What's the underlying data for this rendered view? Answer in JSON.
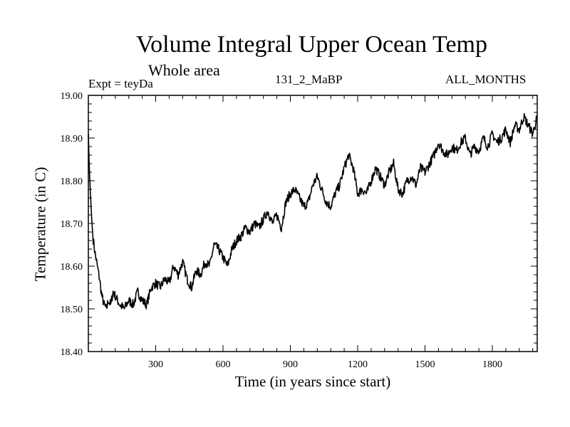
{
  "chart_data": {
    "type": "line",
    "title": "Volume Integral Upper Ocean Temp",
    "subtitle": "Whole area",
    "experiment_label": "Expt = teyDa",
    "run_label": "131_2_MaBP",
    "months_label": "ALL_MONTHS",
    "xlabel": "Time (in years since start)",
    "ylabel": "Temperature (in C)",
    "xlim": [
      0,
      2000
    ],
    "ylim": [
      18.4,
      19.0
    ],
    "xticks": [
      300,
      600,
      900,
      1200,
      1500,
      1800
    ],
    "xtick_labels": [
      "300",
      "600",
      "900",
      "1200",
      "1500",
      "1800"
    ],
    "yticks": [
      18.4,
      18.5,
      18.6,
      18.7,
      18.8,
      18.9,
      19.0
    ],
    "ytick_labels": [
      "18.40",
      "18.50",
      "18.60",
      "18.70",
      "18.80",
      "18.90",
      "19.00"
    ],
    "grid": false,
    "series": [
      {
        "name": "Volume Integral Upper Ocean Temp",
        "x": [
          0,
          5,
          10,
          15,
          20,
          30,
          40,
          50,
          60,
          70,
          80,
          90,
          100,
          110,
          120,
          140,
          160,
          180,
          200,
          220,
          240,
          260,
          280,
          300,
          320,
          340,
          360,
          380,
          400,
          420,
          440,
          460,
          480,
          500,
          520,
          540,
          560,
          580,
          600,
          620,
          640,
          660,
          680,
          700,
          720,
          740,
          760,
          780,
          800,
          820,
          840,
          860,
          880,
          900,
          920,
          940,
          960,
          980,
          1000,
          1020,
          1040,
          1060,
          1080,
          1100,
          1120,
          1140,
          1160,
          1180,
          1200,
          1220,
          1240,
          1260,
          1280,
          1300,
          1320,
          1340,
          1360,
          1380,
          1400,
          1420,
          1440,
          1460,
          1480,
          1500,
          1520,
          1540,
          1560,
          1580,
          1600,
          1620,
          1640,
          1660,
          1680,
          1700,
          1720,
          1740,
          1760,
          1780,
          1800,
          1820,
          1840,
          1860,
          1880,
          1900,
          1920,
          1940,
          1960,
          1980,
          2000
        ],
        "values": [
          18.91,
          18.82,
          18.76,
          18.71,
          18.67,
          18.63,
          18.6,
          18.57,
          18.53,
          18.51,
          18.5,
          18.52,
          18.51,
          18.54,
          18.53,
          18.51,
          18.5,
          18.52,
          18.51,
          18.54,
          18.52,
          18.51,
          18.55,
          18.56,
          18.55,
          18.57,
          18.56,
          18.6,
          18.58,
          18.61,
          18.57,
          18.55,
          18.59,
          18.58,
          18.61,
          18.6,
          18.65,
          18.64,
          18.62,
          18.6,
          18.64,
          18.66,
          18.67,
          18.69,
          18.68,
          18.7,
          18.69,
          18.71,
          18.73,
          18.7,
          18.72,
          18.69,
          18.75,
          18.77,
          18.78,
          18.76,
          18.74,
          18.75,
          18.79,
          18.81,
          18.78,
          18.75,
          18.74,
          18.77,
          18.79,
          18.83,
          18.86,
          18.83,
          18.77,
          18.78,
          18.77,
          18.8,
          18.83,
          18.81,
          18.79,
          18.82,
          18.84,
          18.78,
          18.77,
          18.8,
          18.81,
          18.79,
          18.83,
          18.82,
          18.84,
          18.86,
          18.89,
          18.87,
          18.86,
          18.88,
          18.87,
          18.89,
          18.9,
          18.86,
          18.88,
          18.87,
          18.9,
          18.88,
          18.91,
          18.89,
          18.9,
          18.92,
          18.89,
          18.93,
          18.92,
          18.95,
          18.93,
          18.91,
          18.95
        ]
      }
    ]
  }
}
